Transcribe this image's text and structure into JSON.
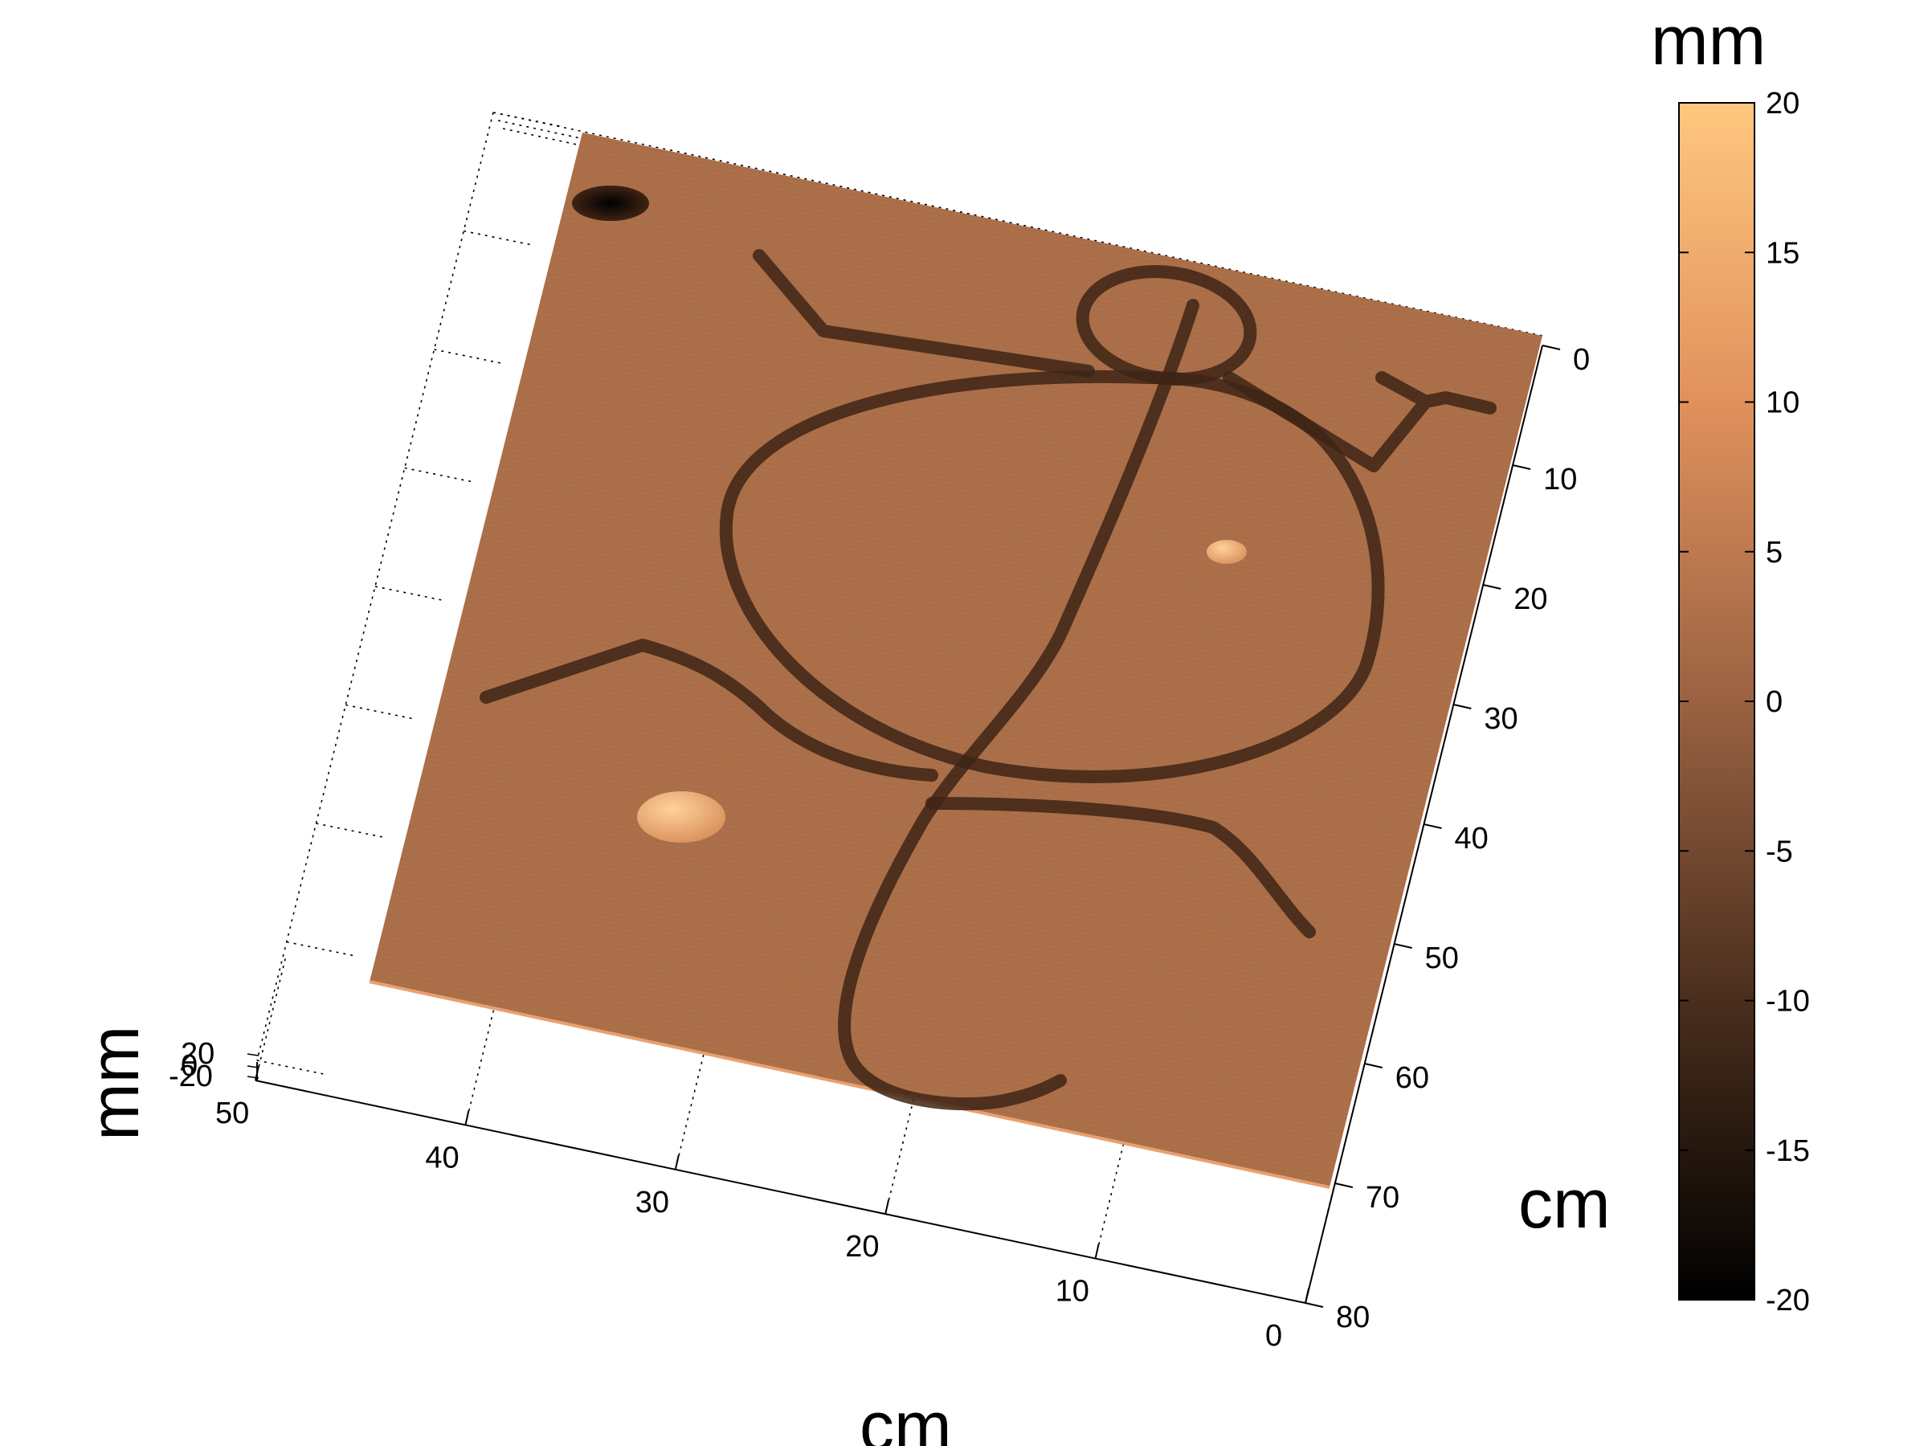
{
  "chart_data": {
    "type": "surface",
    "x_axis": {
      "label": "cm",
      "ticks": [
        0,
        10,
        20,
        30,
        40,
        50
      ],
      "range": [
        0,
        50
      ]
    },
    "y_axis": {
      "label": "cm",
      "ticks": [
        0,
        10,
        20,
        30,
        40,
        50,
        60,
        70,
        80
      ],
      "range": [
        0,
        80
      ]
    },
    "z_axis": {
      "label": "mm",
      "ticks": [
        "20",
        "0",
        "-20"
      ]
    },
    "colorbar": {
      "label": "mm",
      "ticks": [
        20,
        15,
        10,
        5,
        0,
        -5,
        -10,
        -15,
        -20
      ],
      "range": [
        -20,
        20
      ],
      "colormap": "copper",
      "stops": [
        "#000000",
        "#4a2e1d",
        "#9a6242",
        "#e0915c",
        "#ffc77f"
      ]
    },
    "surface": {
      "base_color": "#b2744d",
      "engraving_color": "#3e2415",
      "bump_color": "#f2b37c",
      "pit_color": "#1a0d06",
      "features": [
        {
          "kind": "engraved-figure",
          "depth_mm": -8
        },
        {
          "kind": "raised-bump",
          "height_mm": 15
        },
        {
          "kind": "raised-bump",
          "height_mm": 12
        },
        {
          "kind": "pit",
          "depth_mm": -20
        }
      ]
    },
    "grid": true
  }
}
